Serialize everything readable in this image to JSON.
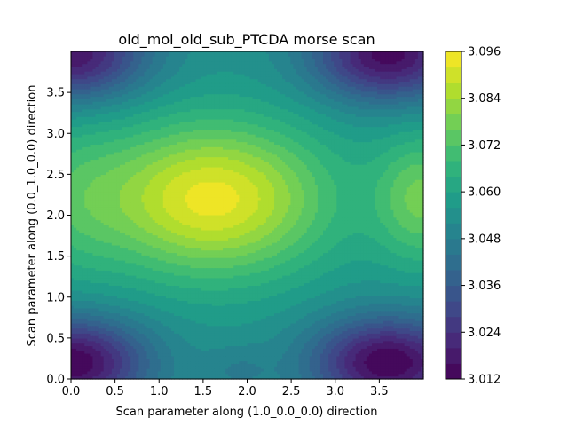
{
  "chart_data": {
    "type": "contour",
    "title": "old_mol_old_sub_PTCDA morse scan",
    "xlabel": "Scan parameter along (1.0_0.0_0.0) direction",
    "ylabel": "Scan parameter along (0.0_1.0_0.0) direction",
    "xlim": [
      0.0,
      4.0
    ],
    "ylim": [
      0.0,
      4.0
    ],
    "xticks": [
      "0.0",
      "0.5",
      "1.0",
      "1.5",
      "2.0",
      "2.5",
      "3.0",
      "3.5"
    ],
    "yticks": [
      "0.0",
      "0.5",
      "1.0",
      "1.5",
      "2.0",
      "2.5",
      "3.0",
      "3.5"
    ],
    "xtick_values": [
      0.0,
      0.5,
      1.0,
      1.5,
      2.0,
      2.5,
      3.0,
      3.5
    ],
    "ytick_values": [
      0.0,
      0.5,
      1.0,
      1.5,
      2.0,
      2.5,
      3.0,
      3.5
    ],
    "colormap": "viridis",
    "colorbar": {
      "min": 3.012,
      "max": 3.096,
      "ticks": [
        "3.012",
        "3.024",
        "3.036",
        "3.048",
        "3.060",
        "3.072",
        "3.084",
        "3.096"
      ],
      "tick_values": [
        3.012,
        3.024,
        3.036,
        3.048,
        3.06,
        3.072,
        3.084,
        3.096
      ],
      "levels": 21
    },
    "features": [
      {
        "description": "maximum",
        "x": 1.6,
        "y": 2.2,
        "z": 3.096
      },
      {
        "description": "minimum",
        "x": 0.0,
        "y": 0.2,
        "z": 3.012
      },
      {
        "description": "minimum",
        "x": 3.6,
        "y": 0.2,
        "z": 3.012
      },
      {
        "description": "minimum",
        "x": 3.6,
        "y": 3.95,
        "z": 3.014
      },
      {
        "description": "minimum",
        "x": 0.0,
        "y": 3.95,
        "z": 3.016
      }
    ]
  }
}
